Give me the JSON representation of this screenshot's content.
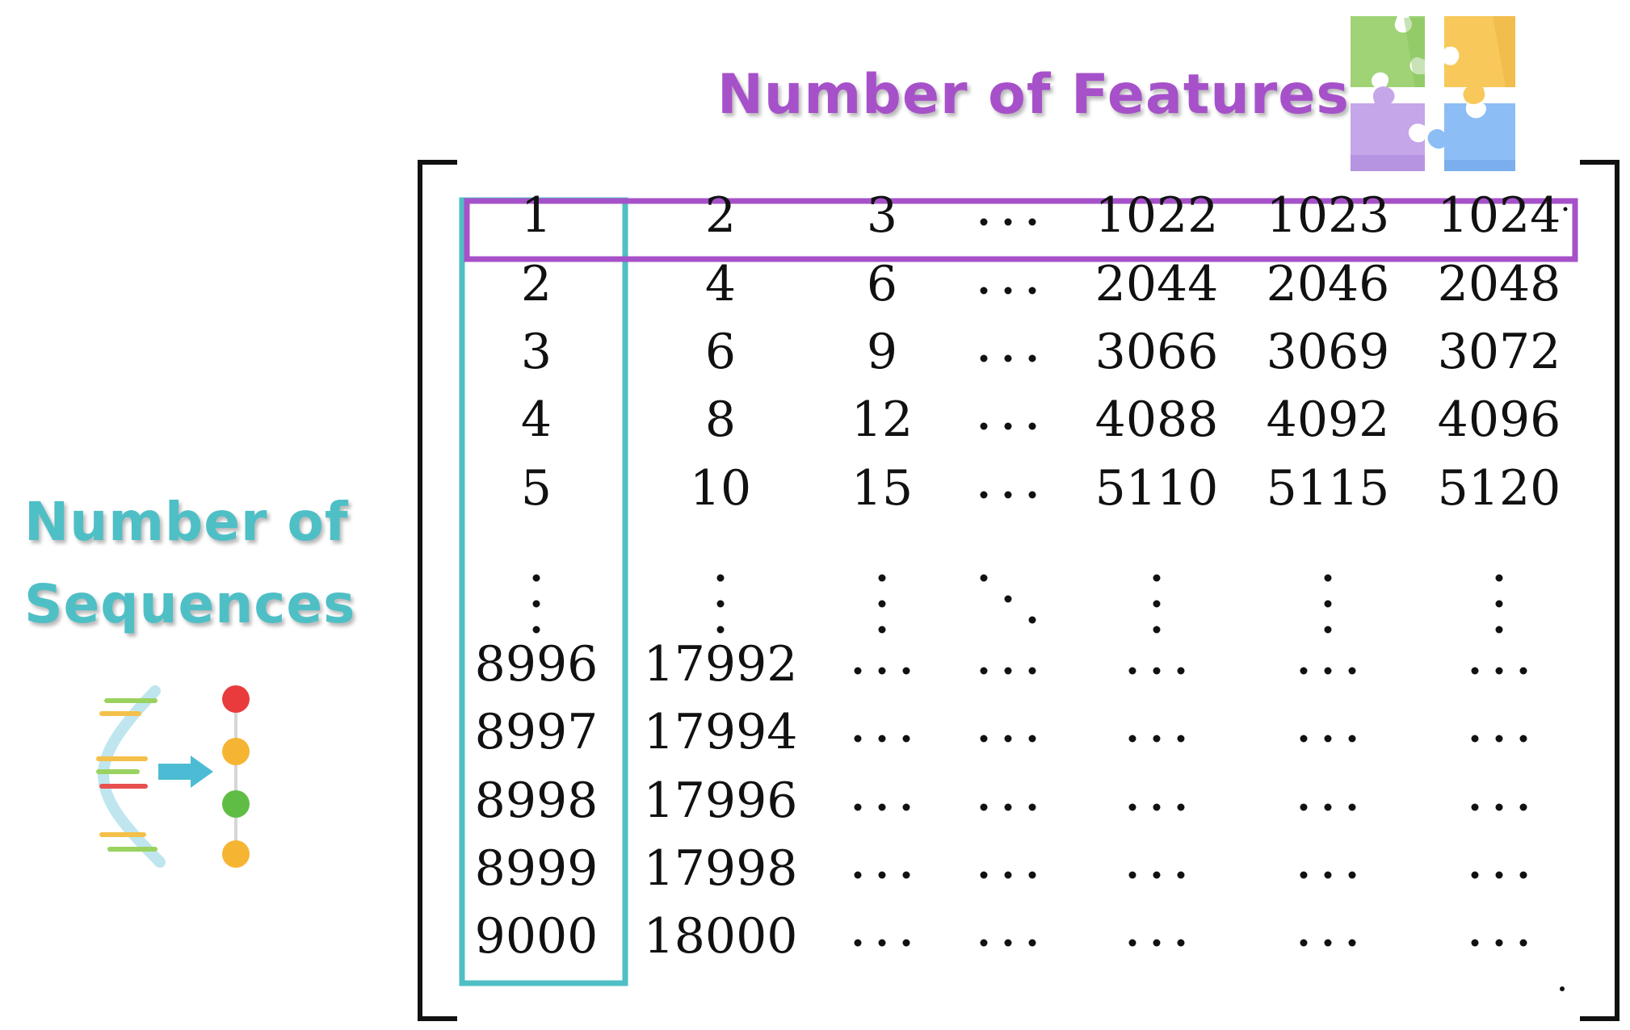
{
  "features_label": "Number of Features",
  "sequences_label_line1": "Number of",
  "sequences_label_line2": "Sequences",
  "colors": {
    "features": "#a651c9",
    "sequences": "#4fbfc6"
  },
  "icons": [
    "puzzle-pieces-icon",
    "dna-sequence-icon"
  ],
  "matrix": {
    "column_groups": [
      "first",
      "second",
      "third",
      "ellipsis",
      "third-last",
      "second-last",
      "last"
    ],
    "rows": [
      [
        "1",
        "2",
        "3",
        "...",
        "1022",
        "1023",
        "1024"
      ],
      [
        "2",
        "4",
        "6",
        "...",
        "2044",
        "2046",
        "2048"
      ],
      [
        "3",
        "6",
        "9",
        "...",
        "3066",
        "3069",
        "3072"
      ],
      [
        "4",
        "8",
        "12",
        "...",
        "4088",
        "4092",
        "4096"
      ],
      [
        "5",
        "10",
        "15",
        "...",
        "5110",
        "5115",
        "5120"
      ],
      [
        "⋮",
        "⋮",
        "⋮",
        "⋱",
        "⋮",
        "⋮",
        "⋮"
      ],
      [
        "8996",
        "17992",
        "...",
        "...",
        "...",
        "...",
        "..."
      ],
      [
        "8997",
        "17994",
        "...",
        "...",
        "...",
        "...",
        "..."
      ],
      [
        "8998",
        "17996",
        "...",
        "...",
        "...",
        "...",
        "..."
      ],
      [
        "8999",
        "17998",
        "...",
        "...",
        "...",
        "...",
        "..."
      ],
      [
        "9000",
        "18000",
        "...",
        "...",
        "...",
        "...",
        "..."
      ]
    ]
  }
}
